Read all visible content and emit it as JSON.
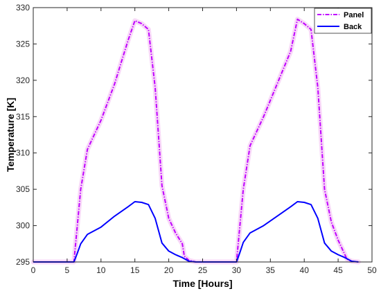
{
  "chart_data": {
    "type": "line",
    "title": "",
    "xlabel": "Time [Hours]",
    "ylabel": "Temperature [K]",
    "xlim": [
      0,
      50
    ],
    "ylim": [
      295,
      330
    ],
    "xticks": [
      0,
      5,
      10,
      15,
      20,
      25,
      30,
      35,
      40,
      45,
      50
    ],
    "yticks": [
      295,
      300,
      305,
      310,
      315,
      320,
      325,
      330
    ],
    "grid": false,
    "legend_position": "top-right",
    "series": [
      {
        "name": "Panel",
        "color": "#bf00ff",
        "style": "dash-dot",
        "glow_color": "#f8d8f8",
        "x": [
          0,
          6,
          6.5,
          7,
          8,
          10,
          12,
          13,
          14,
          15,
          16,
          17,
          18,
          19,
          20,
          21,
          22,
          22.3,
          23,
          24,
          30,
          30.5,
          31,
          32,
          34,
          36,
          38,
          39,
          40,
          41,
          42,
          43,
          44,
          45,
          46,
          46.3,
          47,
          48
        ],
        "y": [
          295,
          295,
          300,
          305,
          310.5,
          314.5,
          319.5,
          322.5,
          325.5,
          328.2,
          327.8,
          327,
          319,
          305.5,
          301,
          299,
          297.5,
          295.8,
          295.2,
          295,
          295,
          300,
          305,
          311,
          315,
          319.5,
          324,
          328.4,
          327.8,
          327,
          319,
          305,
          300.5,
          298,
          296,
          295.4,
          295.1,
          295
        ]
      },
      {
        "name": "Back",
        "color": "#0000ff",
        "style": "solid",
        "x": [
          0,
          6,
          6.5,
          7,
          8,
          10,
          12,
          14,
          15,
          16,
          17,
          18,
          19,
          20,
          21,
          22,
          23,
          24,
          30,
          30.5,
          31,
          32,
          34,
          36,
          38,
          39,
          40,
          41,
          42,
          43,
          44,
          45,
          46,
          47,
          48
        ],
        "y": [
          295,
          295,
          296.2,
          297.5,
          298.8,
          299.8,
          301.3,
          302.6,
          303.3,
          303.2,
          302.9,
          301,
          297.6,
          296.5,
          296,
          295.6,
          295.1,
          295,
          295,
          296.3,
          297.7,
          299,
          300,
          301.3,
          302.6,
          303.3,
          303.2,
          302.9,
          301,
          297.6,
          296.5,
          296,
          295.6,
          295.1,
          295
        ]
      }
    ]
  }
}
